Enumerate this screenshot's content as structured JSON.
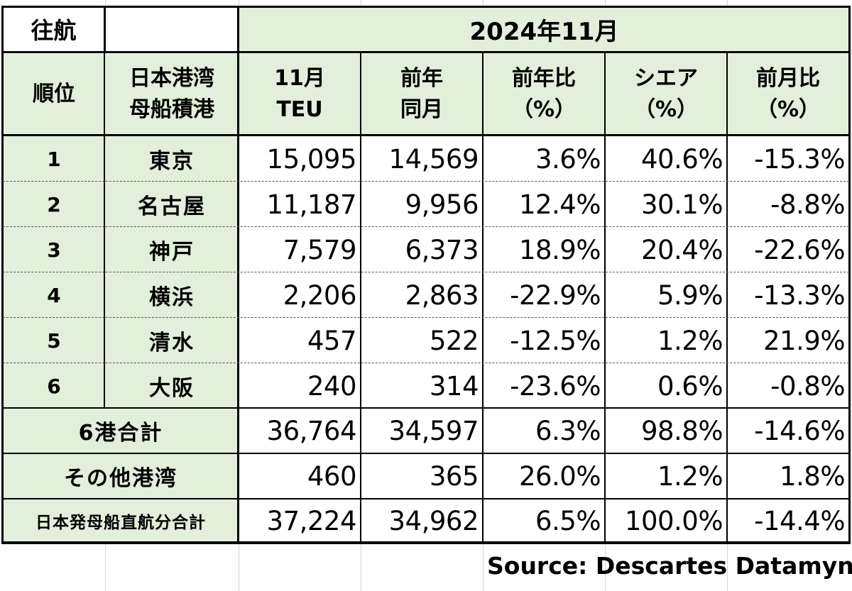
{
  "table": {
    "direction_label": "往航",
    "period_label": "2024年11月",
    "headers": {
      "rank": "順位",
      "port": "日本港湾\n母船積港",
      "teu": "11月\nTEU",
      "prev_year": "前年\n同月",
      "yoy": "前年比\n（%）",
      "share": "シエア\n（%）",
      "mom": "前月比\n（%）"
    },
    "rows": [
      {
        "rank": "1",
        "port": "東京",
        "teu": "15,095",
        "prev": "14,569",
        "yoy": "3.6%",
        "share": "40.6%",
        "mom": "-15.3%"
      },
      {
        "rank": "2",
        "port": "名古屋",
        "teu": "11,187",
        "prev": "9,956",
        "yoy": "12.4%",
        "share": "30.1%",
        "mom": "-8.8%"
      },
      {
        "rank": "3",
        "port": "神戸",
        "teu": "7,579",
        "prev": "6,373",
        "yoy": "18.9%",
        "share": "20.4%",
        "mom": "-22.6%"
      },
      {
        "rank": "4",
        "port": "横浜",
        "teu": "2,206",
        "prev": "2,863",
        "yoy": "-22.9%",
        "share": "5.9%",
        "mom": "-13.3%"
      },
      {
        "rank": "5",
        "port": "清水",
        "teu": "457",
        "prev": "522",
        "yoy": "-12.5%",
        "share": "1.2%",
        "mom": "21.9%"
      },
      {
        "rank": "6",
        "port": "大阪",
        "teu": "240",
        "prev": "314",
        "yoy": "-23.6%",
        "share": "0.6%",
        "mom": "-0.8%"
      }
    ],
    "summary": [
      {
        "label": "6港合計",
        "teu": "36,764",
        "prev": "34,597",
        "yoy": "6.3%",
        "share": "98.8%",
        "mom": "-14.6%"
      },
      {
        "label": "その他港湾",
        "teu": "460",
        "prev": "365",
        "yoy": "26.0%",
        "share": "1.2%",
        "mom": "1.8%"
      },
      {
        "label": "日本発母船直航分合計",
        "teu": "37,224",
        "prev": "34,962",
        "yoy": "6.5%",
        "share": "100.0%",
        "mom": "-14.4%"
      }
    ]
  },
  "source": "Source:  Descartes Datamyne",
  "colors": {
    "header_bg": "#e2efda",
    "border": "#000000"
  }
}
